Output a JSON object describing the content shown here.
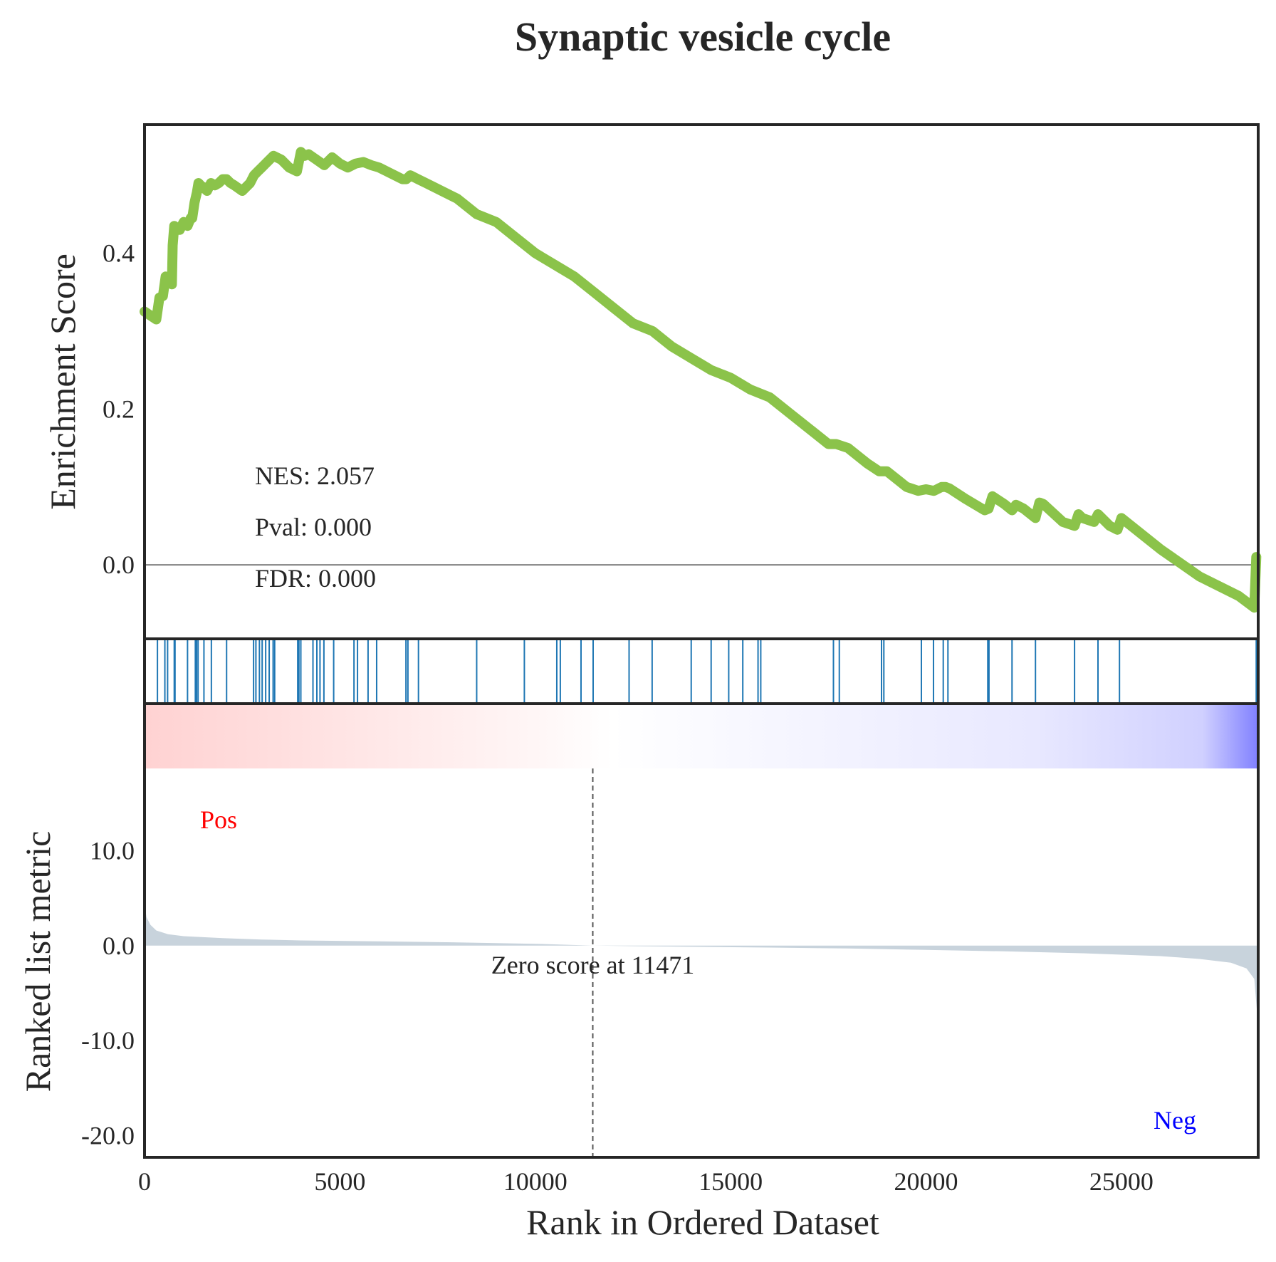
{
  "chart_data": {
    "type": "line",
    "title": "Synaptic vesicle cycle",
    "es_panel": {
      "ylabel": "Enrichment Score",
      "ylim": [
        -0.095,
        0.565
      ],
      "yticks": [
        0.0,
        0.2,
        0.4
      ],
      "ytick_labels": [
        "0.0",
        "0.2",
        "0.4"
      ],
      "line_color": "#8bc34a",
      "zero_line": true,
      "stats": [
        "NES: 2.057",
        "Pval: 0.000",
        "FDR: 0.000"
      ],
      "series": [
        {
          "x": [
            0,
            300,
            380,
            470,
            540,
            620,
            700,
            720,
            760,
            800,
            900,
            1000,
            1100,
            1180,
            1220,
            1280,
            1340,
            1380,
            1420,
            1440,
            1500,
            1600,
            1700,
            1800,
            1900,
            2000,
            2100,
            2200,
            2300,
            2500,
            2700,
            2800,
            2900,
            3000,
            3100,
            3200,
            3300,
            3500,
            3700,
            3900,
            4000,
            4100,
            4200,
            4400,
            4600,
            4800,
            5000,
            5200,
            5400,
            5600,
            5800,
            6000,
            6200,
            6400,
            6600,
            6700,
            6800,
            7000,
            7200,
            8000,
            8500,
            9000,
            9500,
            10000,
            10500,
            11000,
            11500,
            12000,
            12500,
            13000,
            13500,
            14000,
            14500,
            15000,
            15500,
            16000,
            16500,
            17000,
            17500,
            17700,
            18000,
            18500,
            18800,
            19000,
            19500,
            19800,
            20000,
            20200,
            20400,
            20500,
            20600,
            21000,
            21500,
            21600,
            21700,
            22000,
            22200,
            22300,
            22500,
            22800,
            22900,
            23000,
            23500,
            23800,
            23900,
            24000,
            24300,
            24400,
            24700,
            24900,
            25000,
            26000,
            27000,
            28000,
            28400,
            28450
          ],
          "values": [
            0.325,
            0.315,
            0.343,
            0.345,
            0.37,
            0.365,
            0.36,
            0.41,
            0.435,
            0.43,
            0.43,
            0.44,
            0.435,
            0.445,
            0.445,
            0.465,
            0.478,
            0.49,
            0.488,
            0.485,
            0.485,
            0.48,
            0.49,
            0.487,
            0.49,
            0.495,
            0.495,
            0.49,
            0.487,
            0.48,
            0.49,
            0.5,
            0.505,
            0.51,
            0.515,
            0.52,
            0.525,
            0.52,
            0.51,
            0.505,
            0.53,
            0.525,
            0.527,
            0.52,
            0.513,
            0.523,
            0.515,
            0.51,
            0.515,
            0.517,
            0.513,
            0.51,
            0.505,
            0.5,
            0.495,
            0.495,
            0.5,
            0.495,
            0.49,
            0.47,
            0.45,
            0.44,
            0.42,
            0.4,
            0.385,
            0.37,
            0.35,
            0.33,
            0.31,
            0.3,
            0.28,
            0.265,
            0.25,
            0.24,
            0.225,
            0.215,
            0.195,
            0.175,
            0.155,
            0.155,
            0.15,
            0.13,
            0.12,
            0.12,
            0.1,
            0.095,
            0.097,
            0.095,
            0.1,
            0.1,
            0.098,
            0.085,
            0.07,
            0.072,
            0.088,
            0.078,
            0.07,
            0.077,
            0.072,
            0.06,
            0.08,
            0.078,
            0.055,
            0.05,
            0.065,
            0.06,
            0.055,
            0.065,
            0.05,
            0.045,
            0.06,
            0.02,
            -0.015,
            -0.04,
            -0.055,
            0.01
          ]
        }
      ]
    },
    "hits_panel": {
      "color": "#1f77b4",
      "hit_ranks": [
        330,
        520,
        590,
        760,
        780,
        1100,
        1300,
        1330,
        1370,
        1520,
        1710,
        2100,
        2790,
        2850,
        2940,
        3010,
        3100,
        3190,
        3290,
        3330,
        3920,
        3950,
        4000,
        4310,
        4410,
        4490,
        4590,
        4840,
        5360,
        5450,
        5720,
        5940,
        6690,
        6740,
        7010,
        8500,
        9720,
        10550,
        10640,
        11170,
        11480,
        12400,
        12990,
        13990,
        14500,
        14950,
        15310,
        15700,
        15770,
        17630,
        17780,
        18860,
        18920,
        19880,
        20190,
        20440,
        20560,
        21580,
        21610,
        22200,
        22800,
        23800,
        24400,
        24950,
        28450
      ]
    },
    "rank_panel": {
      "ylabel": "Ranked list metric",
      "xlabel": "Rank in Ordered Dataset",
      "xlim": [
        0,
        28500
      ],
      "xticks": [
        0,
        5000,
        10000,
        15000,
        20000,
        25000
      ],
      "xtick_labels": [
        "0",
        "5000",
        "10000",
        "15000",
        "20000",
        "25000"
      ],
      "ylim": [
        -22.3,
        25.5
      ],
      "yticks": [
        10.0,
        0.0,
        -10.0,
        -20.0
      ],
      "ytick_labels": [
        "10.0",
        "0.0",
        "-10.0",
        "-20.0"
      ],
      "fill_color": "#c8d3dc",
      "metric_x": [
        0,
        50,
        150,
        300,
        600,
        1000,
        2000,
        3000,
        4000,
        6000,
        8000,
        10000,
        11471,
        14000,
        16000,
        18000,
        20000,
        22000,
        24000,
        26000,
        27000,
        27800,
        28200,
        28400,
        28500
      ],
      "metric_values": [
        4.5,
        3.0,
        2.2,
        1.6,
        1.2,
        1.0,
        0.8,
        0.65,
        0.55,
        0.45,
        0.35,
        0.2,
        0.0,
        -0.12,
        -0.2,
        -0.3,
        -0.45,
        -0.6,
        -0.8,
        -1.1,
        -1.4,
        -1.8,
        -2.4,
        -3.5,
        -8.5
      ],
      "pos_label": "Pos",
      "neg_label": "Neg",
      "pos_color": "#ff0000",
      "neg_color": "#0000ff",
      "zero_cross_rank": 11471,
      "zero_cross_label": "Zero score at 11471"
    }
  }
}
